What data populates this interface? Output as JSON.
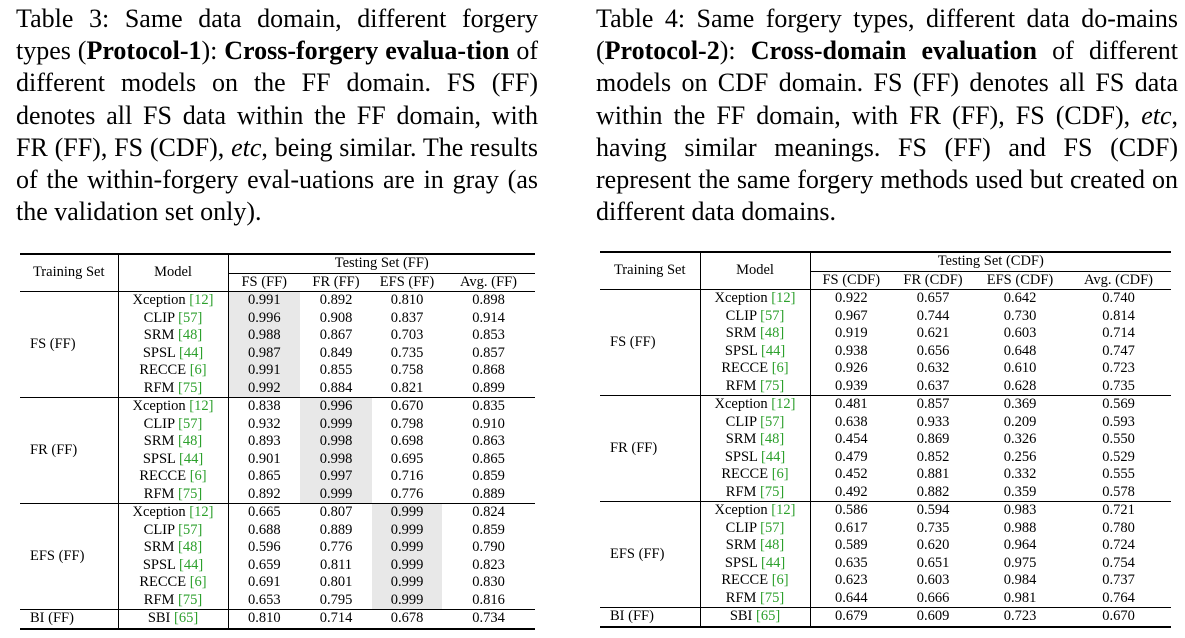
{
  "table3": {
    "caption": {
      "p1": "Table 3: Same data domain, different forgery types (",
      "b1": "Protocol-1",
      "p2": "): ",
      "b2": "Cross-forgery evalua-tion",
      "p3": " of different models on the FF domain. FS (FF) denotes all FS data within the FF domain, with FR (FF), FS (CDF), ",
      "i1": "etc",
      "p4": ", being similar. The results of the within-forgery eval-uations are in gray (as the validation set only)."
    },
    "header": {
      "training_set": "Training Set",
      "model": "Model",
      "testing_set": "Testing Set (FF)",
      "columns": [
        "FS (FF)",
        "FR (FF)",
        "EFS (FF)",
        "Avg. (FF)"
      ]
    },
    "groups": [
      {
        "label": "FS (FF)",
        "highlight_col": 0,
        "rows": [
          {
            "model": "Xception",
            "ref": "[12]",
            "values": [
              "0.991",
              "0.892",
              "0.810",
              "0.898"
            ]
          },
          {
            "model": "CLIP",
            "ref": "[57]",
            "values": [
              "0.996",
              "0.908",
              "0.837",
              "0.914"
            ]
          },
          {
            "model": "SRM",
            "ref": "[48]",
            "values": [
              "0.988",
              "0.867",
              "0.703",
              "0.853"
            ]
          },
          {
            "model": "SPSL",
            "ref": "[44]",
            "values": [
              "0.987",
              "0.849",
              "0.735",
              "0.857"
            ]
          },
          {
            "model": "RECCE",
            "ref": "[6]",
            "values": [
              "0.991",
              "0.855",
              "0.758",
              "0.868"
            ]
          },
          {
            "model": "RFM",
            "ref": "[75]",
            "values": [
              "0.992",
              "0.884",
              "0.821",
              "0.899"
            ]
          }
        ]
      },
      {
        "label": "FR (FF)",
        "highlight_col": 1,
        "rows": [
          {
            "model": "Xception",
            "ref": "[12]",
            "values": [
              "0.838",
              "0.996",
              "0.670",
              "0.835"
            ]
          },
          {
            "model": "CLIP",
            "ref": "[57]",
            "values": [
              "0.932",
              "0.999",
              "0.798",
              "0.910"
            ]
          },
          {
            "model": "SRM",
            "ref": "[48]",
            "values": [
              "0.893",
              "0.998",
              "0.698",
              "0.863"
            ]
          },
          {
            "model": "SPSL",
            "ref": "[44]",
            "values": [
              "0.901",
              "0.998",
              "0.695",
              "0.865"
            ]
          },
          {
            "model": "RECCE",
            "ref": "[6]",
            "values": [
              "0.865",
              "0.997",
              "0.716",
              "0.859"
            ]
          },
          {
            "model": "RFM",
            "ref": "[75]",
            "values": [
              "0.892",
              "0.999",
              "0.776",
              "0.889"
            ]
          }
        ]
      },
      {
        "label": "EFS (FF)",
        "highlight_col": 2,
        "rows": [
          {
            "model": "Xception",
            "ref": "[12]",
            "values": [
              "0.665",
              "0.807",
              "0.999",
              "0.824"
            ]
          },
          {
            "model": "CLIP",
            "ref": "[57]",
            "values": [
              "0.688",
              "0.889",
              "0.999",
              "0.859"
            ]
          },
          {
            "model": "SRM",
            "ref": "[48]",
            "values": [
              "0.596",
              "0.776",
              "0.999",
              "0.790"
            ]
          },
          {
            "model": "SPSL",
            "ref": "[44]",
            "values": [
              "0.659",
              "0.811",
              "0.999",
              "0.823"
            ]
          },
          {
            "model": "RECCE",
            "ref": "[6]",
            "values": [
              "0.691",
              "0.801",
              "0.999",
              "0.830"
            ]
          },
          {
            "model": "RFM",
            "ref": "[75]",
            "values": [
              "0.653",
              "0.795",
              "0.999",
              "0.816"
            ]
          }
        ]
      },
      {
        "label": "BI (FF)",
        "highlight_col": -1,
        "rows": [
          {
            "model": "SBI",
            "ref": "[65]",
            "values": [
              "0.810",
              "0.714",
              "0.678",
              "0.734"
            ]
          }
        ]
      }
    ]
  },
  "table4": {
    "caption": {
      "p1": "Table 4: Same forgery types, different data do-mains (",
      "b1": "Protocol-2",
      "p2": "): ",
      "b2": "Cross-domain evaluation",
      "p3": " of different models on CDF domain. FS (FF) denotes all FS data within the FF domain, with FR (FF), FS (CDF), ",
      "i1": "etc",
      "p4": ", having similar meanings. FS (FF) and FS (CDF) represent the same forgery methods used but created on different data domains."
    },
    "header": {
      "training_set": "Training Set",
      "model": "Model",
      "testing_set": "Testing Set (CDF)",
      "columns": [
        "FS (CDF)",
        "FR (CDF)",
        "EFS (CDF)",
        "Avg. (CDF)"
      ]
    },
    "groups": [
      {
        "label": "FS (FF)",
        "highlight_col": -1,
        "rows": [
          {
            "model": "Xception",
            "ref": "[12]",
            "values": [
              "0.922",
              "0.657",
              "0.642",
              "0.740"
            ]
          },
          {
            "model": "CLIP",
            "ref": "[57]",
            "values": [
              "0.967",
              "0.744",
              "0.730",
              "0.814"
            ]
          },
          {
            "model": "SRM",
            "ref": "[48]",
            "values": [
              "0.919",
              "0.621",
              "0.603",
              "0.714"
            ]
          },
          {
            "model": "SPSL",
            "ref": "[44]",
            "values": [
              "0.938",
              "0.656",
              "0.648",
              "0.747"
            ]
          },
          {
            "model": "RECCE",
            "ref": "[6]",
            "values": [
              "0.926",
              "0.632",
              "0.610",
              "0.723"
            ]
          },
          {
            "model": "RFM",
            "ref": "[75]",
            "values": [
              "0.939",
              "0.637",
              "0.628",
              "0.735"
            ]
          }
        ]
      },
      {
        "label": "FR (FF)",
        "highlight_col": -1,
        "rows": [
          {
            "model": "Xception",
            "ref": "[12]",
            "values": [
              "0.481",
              "0.857",
              "0.369",
              "0.569"
            ]
          },
          {
            "model": "CLIP",
            "ref": "[57]",
            "values": [
              "0.638",
              "0.933",
              "0.209",
              "0.593"
            ]
          },
          {
            "model": "SRM",
            "ref": "[48]",
            "values": [
              "0.454",
              "0.869",
              "0.326",
              "0.550"
            ]
          },
          {
            "model": "SPSL",
            "ref": "[44]",
            "values": [
              "0.479",
              "0.852",
              "0.256",
              "0.529"
            ]
          },
          {
            "model": "RECCE",
            "ref": "[6]",
            "values": [
              "0.452",
              "0.881",
              "0.332",
              "0.555"
            ]
          },
          {
            "model": "RFM",
            "ref": "[75]",
            "values": [
              "0.492",
              "0.882",
              "0.359",
              "0.578"
            ]
          }
        ]
      },
      {
        "label": "EFS (FF)",
        "highlight_col": -1,
        "rows": [
          {
            "model": "Xception",
            "ref": "[12]",
            "values": [
              "0.586",
              "0.594",
              "0.983",
              "0.721"
            ]
          },
          {
            "model": "CLIP",
            "ref": "[57]",
            "values": [
              "0.617",
              "0.735",
              "0.988",
              "0.780"
            ]
          },
          {
            "model": "SRM",
            "ref": "[48]",
            "values": [
              "0.589",
              "0.620",
              "0.964",
              "0.724"
            ]
          },
          {
            "model": "SPSL",
            "ref": "[44]",
            "values": [
              "0.635",
              "0.651",
              "0.975",
              "0.754"
            ]
          },
          {
            "model": "RECCE",
            "ref": "[6]",
            "values": [
              "0.623",
              "0.603",
              "0.984",
              "0.737"
            ]
          },
          {
            "model": "RFM",
            "ref": "[75]",
            "values": [
              "0.644",
              "0.666",
              "0.981",
              "0.764"
            ]
          }
        ]
      },
      {
        "label": "BI (FF)",
        "highlight_col": -1,
        "rows": [
          {
            "model": "SBI",
            "ref": "[65]",
            "values": [
              "0.679",
              "0.609",
              "0.723",
              "0.670"
            ]
          }
        ]
      }
    ]
  },
  "colors": {
    "highlight": "#e8e8e8",
    "citation": "#2ca02c"
  }
}
